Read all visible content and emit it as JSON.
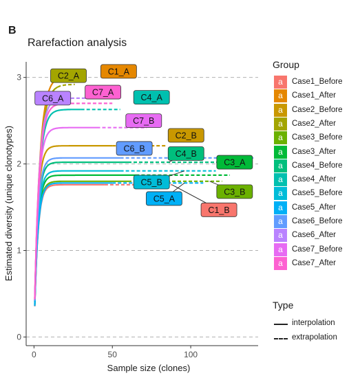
{
  "panel_letter": "B",
  "chart_data": {
    "type": "line",
    "title": "Rarefaction analysis",
    "xlabel": "Sample size (clones)",
    "ylabel": "Estimated diversity (unique clonotypes)",
    "xlim": [
      -5,
      143
    ],
    "ylim": [
      -0.1,
      3.18
    ],
    "xticks": [
      0,
      50,
      100
    ],
    "yticks": [
      0,
      1,
      2,
      3
    ],
    "grid_y": true,
    "series": [
      {
        "name": "Case1_Before",
        "color": "#F8766D",
        "label": "C1_B",
        "asymptote": 1.76,
        "x_end": 45,
        "x_max": 88,
        "rate": 0.45
      },
      {
        "name": "Case1_After",
        "color": "#E58700",
        "label": "C1_A",
        "asymptote": 3.02,
        "x_end": 18,
        "x_max": 30,
        "rate": 0.3
      },
      {
        "name": "Case2_Before",
        "color": "#C99800",
        "label": "C2_B",
        "asymptote": 2.21,
        "x_end": 50,
        "x_max": 85,
        "rate": 0.45
      },
      {
        "name": "Case2_After",
        "color": "#A3A500",
        "label": "C2_A",
        "asymptote": 2.92,
        "x_end": 15,
        "x_max": 26,
        "rate": 0.3
      },
      {
        "name": "Case3_Before",
        "color": "#6BB100",
        "label": "C3_B",
        "asymptote": 1.8,
        "x_end": 60,
        "x_max": 120,
        "rate": 0.45
      },
      {
        "name": "Case3_After",
        "color": "#00BA38",
        "label": "C3_A",
        "asymptote": 1.87,
        "x_end": 65,
        "x_max": 125,
        "rate": 0.45
      },
      {
        "name": "Case4_Before",
        "color": "#00BF7D",
        "label": "C4_B",
        "asymptote": 2.02,
        "x_end": 60,
        "x_max": 136,
        "rate": 0.45
      },
      {
        "name": "Case4_After",
        "color": "#00C0AF",
        "label": "C4_A",
        "asymptote": 2.63,
        "x_end": 30,
        "x_max": 55,
        "rate": 0.35
      },
      {
        "name": "Case5_Before",
        "color": "#00BCD8",
        "label": "C5_B",
        "asymptote": 1.92,
        "x_end": 55,
        "x_max": 116,
        "rate": 0.45
      },
      {
        "name": "Case5_After",
        "color": "#00B0F6",
        "label": "C5_A",
        "asymptote": 1.78,
        "x_end": 50,
        "x_max": 108,
        "rate": 0.45
      },
      {
        "name": "Case6_Before",
        "color": "#619CFF",
        "label": "C6_B",
        "asymptote": 2.07,
        "x_end": 55,
        "x_max": 140,
        "rate": 0.45
      },
      {
        "name": "Case6_After",
        "color": "#B983FF",
        "label": "C6_A",
        "asymptote": 2.76,
        "x_end": 20,
        "x_max": 40,
        "rate": 0.35
      },
      {
        "name": "Case7_Before",
        "color": "#E76BF3",
        "label": "C7_B",
        "asymptote": 2.42,
        "x_end": 40,
        "x_max": 72,
        "rate": 0.4
      },
      {
        "name": "Case7_After",
        "color": "#FD61D1",
        "label": "C7_A",
        "asymptote": 2.7,
        "x_end": 20,
        "x_max": 50,
        "rate": 0.35
      }
    ],
    "annotations": [
      {
        "text": "C2_A",
        "series": "Case2_After",
        "x": 22,
        "y": 3.02,
        "anchor_x": 15,
        "leader": false
      },
      {
        "text": "C1_A",
        "series": "Case1_After",
        "x": 54,
        "y": 3.07,
        "anchor_x": 30,
        "leader": false
      },
      {
        "text": "C7_A",
        "series": "Case7_After",
        "x": 44,
        "y": 2.83,
        "anchor_x": 34,
        "leader": false
      },
      {
        "text": "C6_A",
        "series": "Case6_After",
        "x": 12,
        "y": 2.76,
        "anchor_x": 22,
        "leader": false
      },
      {
        "text": "C4_A",
        "series": "Case4_After",
        "x": 75,
        "y": 2.77,
        "anchor_x": 55,
        "leader": false
      },
      {
        "text": "C7_B",
        "series": "Case7_Before",
        "x": 70,
        "y": 2.5,
        "anchor_x": 60,
        "leader": false
      },
      {
        "text": "C2_B",
        "series": "Case2_Before",
        "x": 97,
        "y": 2.33,
        "anchor_x": 85,
        "leader": false
      },
      {
        "text": "C6_B",
        "series": "Case6_Before",
        "x": 64,
        "y": 2.18,
        "anchor_x": 78,
        "leader": false
      },
      {
        "text": "C4_B",
        "series": "Case4_Before",
        "x": 97,
        "y": 2.12,
        "anchor_x": 86,
        "leader": true
      },
      {
        "text": "C3_A",
        "series": "Case3_After",
        "x": 128,
        "y": 2.02,
        "anchor_x": 125,
        "leader": false
      },
      {
        "text": "C5_B",
        "series": "Case5_Before",
        "x": 75,
        "y": 1.79,
        "anchor_x": 96,
        "leader": true
      },
      {
        "text": "C3_B",
        "series": "Case3_Before",
        "x": 128,
        "y": 1.68,
        "anchor_x": 112,
        "leader": true
      },
      {
        "text": "C5_A",
        "series": "Case5_After",
        "x": 83,
        "y": 1.6,
        "anchor_x": 96,
        "leader": true
      },
      {
        "text": "C1_B",
        "series": "Case1_Before",
        "x": 118,
        "y": 1.47,
        "anchor_x": 88,
        "leader": true
      }
    ]
  },
  "legend": {
    "group_title": "Group",
    "key_glyph": "a",
    "items": [
      {
        "label": "Case1_Before",
        "color": "#F8766D"
      },
      {
        "label": "Case1_After",
        "color": "#E58700"
      },
      {
        "label": "Case2_Before",
        "color": "#C99800"
      },
      {
        "label": "Case2_After",
        "color": "#A3A500"
      },
      {
        "label": "Case3_Before",
        "color": "#6BB100"
      },
      {
        "label": "Case3_After",
        "color": "#00BA38"
      },
      {
        "label": "Case4_Before",
        "color": "#00BF7D"
      },
      {
        "label": "Case4_After",
        "color": "#00C0AF"
      },
      {
        "label": "Case5_Before",
        "color": "#00BCD8"
      },
      {
        "label": "Case5_After",
        "color": "#00B0F6"
      },
      {
        "label": "Case6_Before",
        "color": "#619CFF"
      },
      {
        "label": "Case6_After",
        "color": "#B983FF"
      },
      {
        "label": "Case7_Before",
        "color": "#E76BF3"
      },
      {
        "label": "Case7_After",
        "color": "#FD61D1"
      }
    ],
    "type_title": "Type",
    "types": [
      {
        "label": "interpolation",
        "style": "solid"
      },
      {
        "label": "extrapolation",
        "style": "dashed"
      }
    ]
  }
}
